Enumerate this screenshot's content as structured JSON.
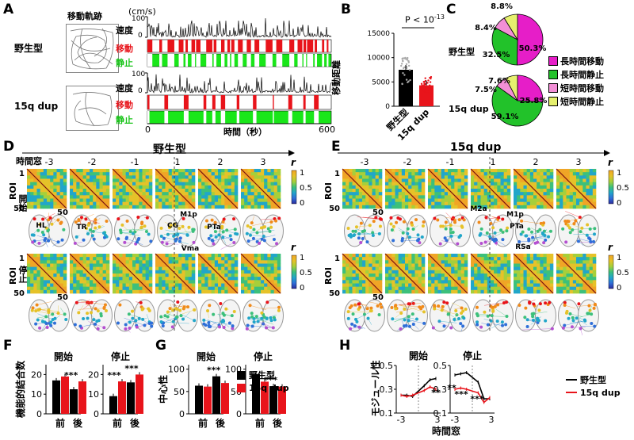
{
  "panels": {
    "A": "A",
    "B": "B",
    "C": "C",
    "D": "D",
    "E": "E",
    "F": "F",
    "G": "G",
    "H": "H"
  },
  "panelA": {
    "trajectory_title": "移動軌跡",
    "unit": "(cm/s)",
    "groups": [
      {
        "name": "野生型",
        "rows": {
          "speed": "速度",
          "move": "移動",
          "rest": "静止"
        },
        "ymax": "100",
        "ymin": "0"
      },
      {
        "name": "15q dup",
        "rows": {
          "speed": "速度",
          "move": "移動",
          "rest": "静止"
        },
        "ymax": "100",
        "ymin": "0"
      }
    ],
    "x_start": "0",
    "x_end": "600",
    "xlabel": "時間（秒）",
    "colors": {
      "speed": "#000000",
      "move": "#e8141b",
      "rest": "#19e619"
    }
  },
  "chart_data": [
    {
      "type": "bar",
      "panel": "B",
      "categories": [
        "野生型",
        "15q dup"
      ],
      "values": [
        7500,
        4300
      ],
      "ylabel": "移動距離",
      "yticks": [
        "0",
        "5000",
        "10000",
        "15000"
      ],
      "ylim": [
        0,
        15000
      ],
      "annotation": "P < 10",
      "annotation_exp": "-13",
      "colors": [
        "#000000",
        "#e8141b"
      ]
    },
    {
      "type": "pie",
      "panel": "C",
      "groups": [
        {
          "name": "野生型",
          "slices": [
            50.3,
            32.5,
            8.4,
            8.8
          ],
          "labels": [
            "50.3%",
            "32.5%",
            "8.4%",
            "8.8%"
          ]
        },
        {
          "name": "15q dup",
          "slices": [
            25.8,
            59.1,
            7.5,
            7.6
          ],
          "labels": [
            "25.8%",
            "59.1%",
            "7.5%",
            "7.6%"
          ]
        }
      ],
      "legend": [
        "長時間移動",
        "長時間静止",
        "短時間移動",
        "短時間静止"
      ],
      "colors": [
        "#e61ec8",
        "#22c22a",
        "#f28fd6",
        "#e6f06e"
      ]
    },
    {
      "type": "bar",
      "panel": "F",
      "ylabel": "機能的結合数",
      "subplots": [
        {
          "title": "開始",
          "categories": [
            "前",
            "後"
          ],
          "series": [
            {
              "name": "野生型",
              "values": [
                17,
                12.5
              ]
            },
            {
              "name": "15q dup",
              "values": [
                19,
                16.5
              ]
            }
          ],
          "yticks": [
            "0",
            "10",
            "20"
          ],
          "ylim": [
            0,
            25
          ],
          "stars": "***"
        },
        {
          "title": "停止",
          "categories": [
            "前",
            "後"
          ],
          "series": [
            {
              "name": "野生型",
              "values": [
                9,
                16
              ]
            },
            {
              "name": "15q dup",
              "values": [
                16.5,
                20
              ]
            }
          ],
          "yticks": [
            "0",
            "10",
            "20"
          ],
          "ylim": [
            0,
            25
          ],
          "stars": [
            "***",
            "***"
          ]
        }
      ]
    },
    {
      "type": "bar",
      "panel": "G",
      "ylabel": "中心性",
      "subplots": [
        {
          "title": "開始",
          "categories": [
            "前",
            "後"
          ],
          "series": [
            {
              "name": "野生型",
              "values": [
                63,
                84
              ]
            },
            {
              "name": "15q dup",
              "values": [
                61,
                69
              ]
            }
          ],
          "yticks": [
            "0",
            "50",
            "100"
          ],
          "ylim": [
            0,
            110
          ],
          "stars": "***"
        },
        {
          "title": "停止",
          "categories": [
            "前",
            "後"
          ],
          "series": [
            {
              "name": "野生型",
              "values": [
                89,
                62
              ]
            },
            {
              "name": "15q dup",
              "values": [
                72,
                61
              ]
            }
          ],
          "yticks": [
            "0",
            "50",
            "100"
          ],
          "ylim": [
            0,
            110
          ],
          "stars": "***"
        }
      ],
      "legend": [
        {
          "name": "野生型",
          "color": "#000000"
        },
        {
          "name": "15q dup",
          "color": "#e8141b"
        }
      ]
    },
    {
      "type": "line",
      "panel": "H",
      "ylabel": "モジュール性",
      "xlabel": "時間窓",
      "subplots": [
        {
          "title": "開始",
          "x": [
            -3,
            -2,
            -1,
            1,
            2,
            3
          ],
          "series": [
            {
              "name": "野生型",
              "values": [
                0.25,
                0.25,
                0.24,
                0.33,
                0.38,
                0.39
              ]
            },
            {
              "name": "15q dup",
              "values": [
                0.25,
                0.24,
                0.25,
                0.29,
                0.32,
                0.3
              ]
            }
          ],
          "yticks": [
            "0.1",
            "0.3",
            "0.5"
          ],
          "xticks": [
            "-3",
            "3"
          ],
          "stars": "**"
        },
        {
          "title": "停止",
          "x": [
            -3,
            -2,
            -1,
            1,
            2,
            3
          ],
          "series": [
            {
              "name": "野生型",
              "values": [
                0.42,
                0.43,
                0.44,
                0.36,
                0.22,
                0.22
              ]
            },
            {
              "name": "15q dup",
              "values": [
                0.3,
                0.31,
                0.3,
                0.27,
                0.19,
                0.23
              ]
            }
          ],
          "yticks": [
            "0.1",
            "0.3",
            "0.5"
          ],
          "xticks": [
            "-3",
            "3"
          ],
          "stars": [
            "**",
            "***",
            "***"
          ]
        }
      ],
      "legend": [
        {
          "name": "野生型",
          "color": "#000000"
        },
        {
          "name": "15q dup",
          "color": "#e8141b"
        }
      ]
    }
  ],
  "panelD": {
    "title": "野生型",
    "window_label": "時間窓",
    "windows": [
      "-3",
      "-2",
      "-1",
      "1",
      "2",
      "3"
    ],
    "rows": [
      "開始",
      "停止"
    ],
    "roi": "ROI",
    "roi_top": "1",
    "roi_bot": "50",
    "roi_bot_x": "50",
    "cbar": {
      "label": "r",
      "ticks": [
        "1",
        "0.5",
        "0"
      ]
    },
    "region_labels": [
      "HL",
      "TR",
      "CG",
      "M1p",
      "PTa",
      "Vma"
    ]
  },
  "panelE": {
    "title": "15q dup",
    "windows": [
      "-3",
      "-2",
      "-1",
      "1",
      "2",
      "3"
    ],
    "roi": "ROI",
    "roi_top": "1",
    "roi_bot": "50",
    "roi_bot_x": "50",
    "cbar": {
      "label": "r",
      "ticks": [
        "1",
        "0.5",
        "0"
      ]
    },
    "region_labels": [
      "M2a",
      "M1p",
      "PTa",
      "RSa"
    ]
  }
}
